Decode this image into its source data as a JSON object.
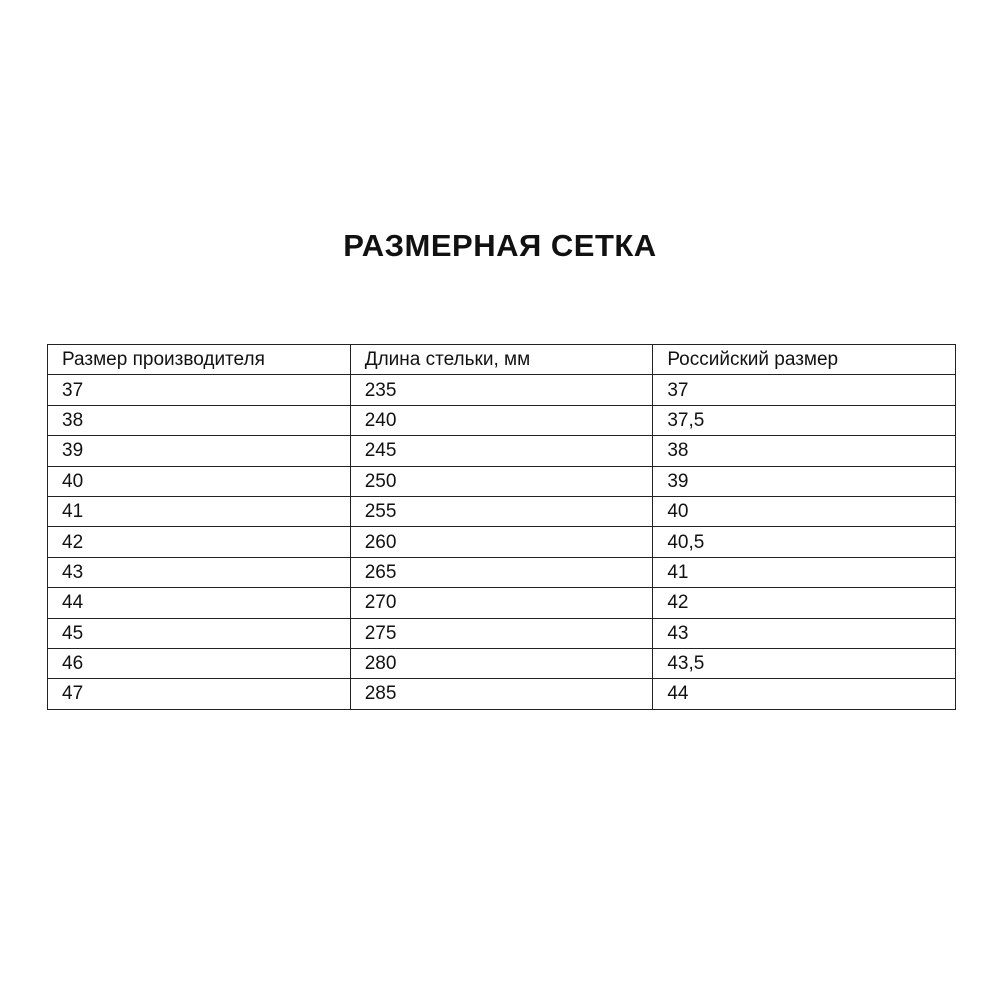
{
  "title": "РАЗМЕРНАЯ СЕТКА",
  "table": {
    "headers": [
      "Размер производителя",
      "Длина стельки, мм",
      "Российский размер"
    ],
    "rows": [
      [
        "37",
        "235",
        "37"
      ],
      [
        "38",
        "240",
        "37,5"
      ],
      [
        "39",
        "245",
        "38"
      ],
      [
        "40",
        "250",
        "39"
      ],
      [
        "41",
        "255",
        "40"
      ],
      [
        "42",
        "260",
        "40,5"
      ],
      [
        "43",
        "265",
        "41"
      ],
      [
        "44",
        "270",
        "42"
      ],
      [
        "45",
        "275",
        "43"
      ],
      [
        "46",
        "280",
        "43,5"
      ],
      [
        "47",
        "285",
        "44"
      ]
    ]
  }
}
